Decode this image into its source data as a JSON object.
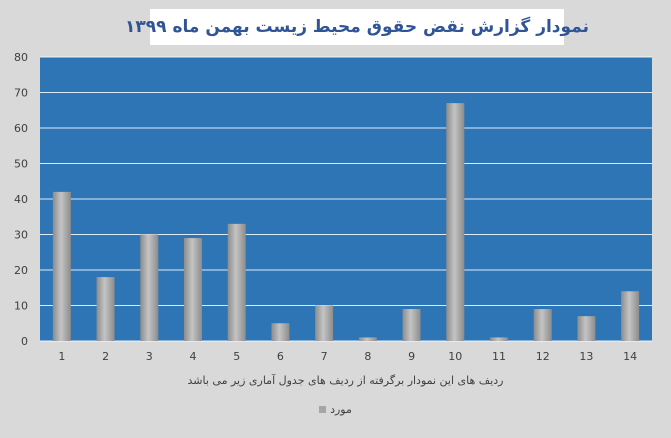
{
  "chart_data": {
    "type": "bar",
    "title": "نمودار گزارش نقض حقوق محیط زیست بهمن ماه ۱۳۹۹",
    "categories": [
      "1",
      "2",
      "3",
      "4",
      "5",
      "6",
      "7",
      "8",
      "9",
      "10",
      "11",
      "12",
      "13",
      "14"
    ],
    "series": [
      {
        "name": "مورد",
        "values": [
          42,
          18,
          30,
          29,
          33,
          5,
          10,
          1,
          9,
          67,
          1,
          9,
          7,
          14
        ]
      }
    ],
    "ylim": [
      0,
      80
    ],
    "yticks": [
      0,
      10,
      20,
      30,
      40,
      50,
      60,
      70,
      80
    ],
    "grid": true,
    "legend": "bottom",
    "note": "ردیف های این نمودار برگرفته از ردیف های جدول آماری زیر می باشد",
    "colors": {
      "plot_bg": "#2e75b6",
      "bar": "#a6a6a6",
      "gridline": "#ffffff",
      "page_bg": "#d9d9d9",
      "title": "#2f5597"
    }
  }
}
